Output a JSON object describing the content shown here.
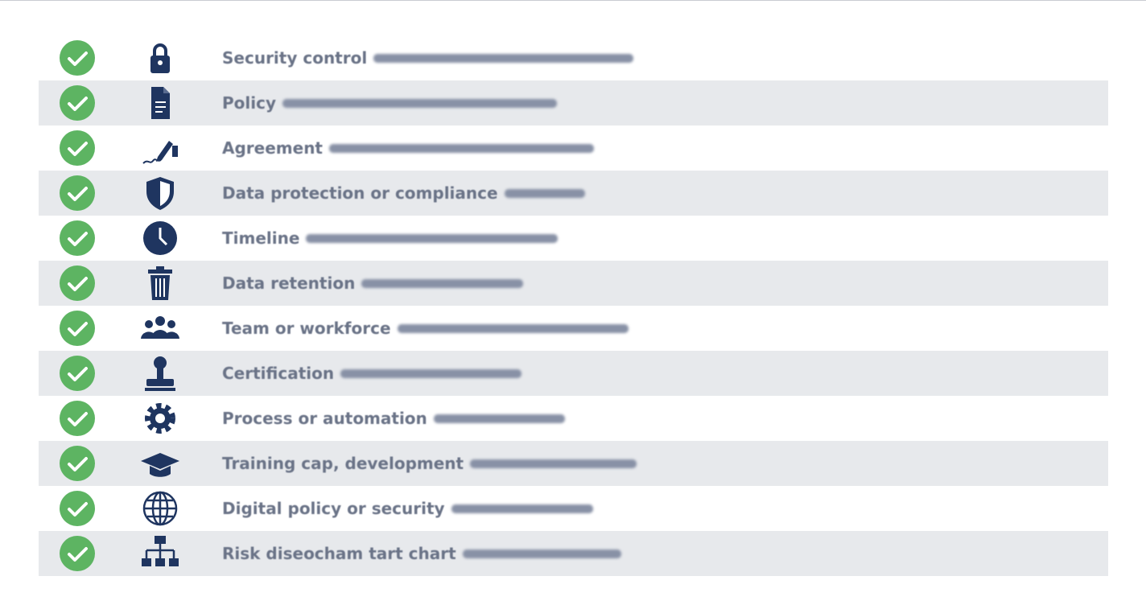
{
  "items": [
    {
      "label": "Security control"
    },
    {
      "label": "Policy"
    },
    {
      "label": "Agreement"
    },
    {
      "label": "Data protection or compliance"
    },
    {
      "label": "Timeline"
    },
    {
      "label": "Data retention"
    },
    {
      "label": "Team or workforce"
    },
    {
      "label": "Certification"
    },
    {
      "label": "Process or automation"
    },
    {
      "label": "Training cap, development"
    },
    {
      "label": "Digital policy or security"
    },
    {
      "label": "Risk diseocham tart chart"
    }
  ]
}
